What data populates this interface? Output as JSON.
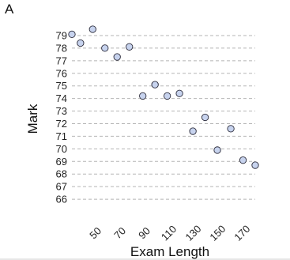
{
  "panel_label": "A",
  "chart_data": {
    "type": "scatter",
    "xlabel": "Exam Length",
    "ylabel": "Mark",
    "xlim": [
      30,
      180
    ],
    "ylim": [
      65,
      79.5
    ],
    "x_ticks": [
      50,
      70,
      90,
      110,
      130,
      150,
      170
    ],
    "y_ticks": [
      66,
      67,
      68,
      69,
      70,
      71,
      72,
      73,
      74,
      75,
      76,
      77,
      78,
      79
    ],
    "grid": "horizontal dashed",
    "marker_color": "#c7d3ee",
    "points": [
      {
        "x": 30,
        "y": 79.1
      },
      {
        "x": 37,
        "y": 78.4
      },
      {
        "x": 47,
        "y": 79.5
      },
      {
        "x": 57,
        "y": 78.0
      },
      {
        "x": 67,
        "y": 77.3
      },
      {
        "x": 77,
        "y": 78.1
      },
      {
        "x": 88,
        "y": 74.2
      },
      {
        "x": 98,
        "y": 75.1
      },
      {
        "x": 108,
        "y": 74.2
      },
      {
        "x": 118,
        "y": 74.4
      },
      {
        "x": 129,
        "y": 71.4
      },
      {
        "x": 139,
        "y": 72.5
      },
      {
        "x": 149,
        "y": 69.9
      },
      {
        "x": 160,
        "y": 71.6
      },
      {
        "x": 170,
        "y": 69.1
      },
      {
        "x": 180,
        "y": 68.7
      }
    ]
  }
}
